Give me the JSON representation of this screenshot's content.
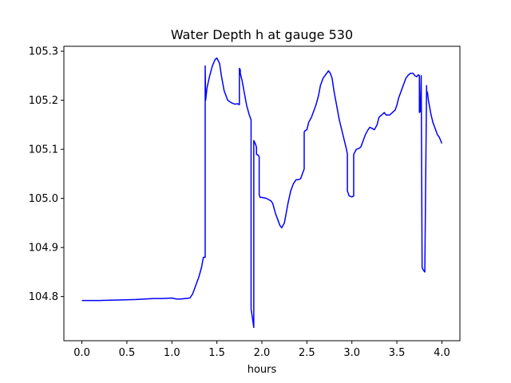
{
  "chart_data": {
    "type": "line",
    "title": "Water Depth h at gauge 530",
    "xlabel": "hours",
    "ylabel": "",
    "xlim": [
      -0.2,
      4.2
    ],
    "ylim": [
      104.71,
      105.31
    ],
    "xticks": [
      0.0,
      0.5,
      1.0,
      1.5,
      2.0,
      2.5,
      3.0,
      3.5,
      4.0
    ],
    "xtick_labels": [
      "0.0",
      "0.5",
      "1.0",
      "1.5",
      "2.0",
      "2.5",
      "3.0",
      "3.5",
      "4.0"
    ],
    "yticks": [
      104.8,
      104.9,
      105.0,
      105.1,
      105.2,
      105.3
    ],
    "ytick_labels": [
      "104.8",
      "104.9",
      "105.0",
      "105.1",
      "105.2",
      "105.3"
    ],
    "grid": false,
    "series": [
      {
        "color": "#0000ff",
        "x": [
          0.0,
          0.2,
          0.4,
          0.6,
          0.7,
          0.8,
          0.9,
          1.0,
          1.05,
          1.1,
          1.15,
          1.2,
          1.23,
          1.26,
          1.3,
          1.33,
          1.35,
          1.37,
          1.37,
          1.375,
          1.39,
          1.42,
          1.45,
          1.48,
          1.5,
          1.53,
          1.55,
          1.58,
          1.62,
          1.66,
          1.7,
          1.73,
          1.75,
          1.75,
          1.76,
          1.76,
          1.78,
          1.8,
          1.83,
          1.86,
          1.88,
          1.88,
          1.9,
          1.91,
          1.91,
          1.93,
          1.94,
          1.94,
          1.96,
          1.97,
          1.97,
          1.98,
          2.0,
          2.05,
          2.1,
          2.12,
          2.15,
          2.18,
          2.2,
          2.22,
          2.25,
          2.27,
          2.29,
          2.32,
          2.35,
          2.38,
          2.4,
          2.43,
          2.45,
          2.47,
          2.47,
          2.48,
          2.5,
          2.52,
          2.55,
          2.58,
          2.6,
          2.63,
          2.65,
          2.68,
          2.7,
          2.72,
          2.74,
          2.76,
          2.78,
          2.8,
          2.83,
          2.86,
          2.9,
          2.94,
          2.95,
          2.95,
          2.97,
          3.0,
          3.02,
          3.02,
          3.05,
          3.08,
          3.1,
          3.13,
          3.15,
          3.18,
          3.2,
          3.22,
          3.25,
          3.28,
          3.3,
          3.33,
          3.36,
          3.38,
          3.42,
          3.45,
          3.48,
          3.5,
          3.52,
          3.55,
          3.58,
          3.6,
          3.62,
          3.65,
          3.68,
          3.7,
          3.72,
          3.74,
          3.75,
          3.75,
          3.76,
          3.77,
          3.77,
          3.78,
          3.78,
          3.79,
          3.81,
          3.83,
          3.83,
          3.84,
          3.85,
          3.87,
          3.88,
          3.9,
          3.93,
          3.95,
          3.97,
          4.0
        ],
        "y": [
          104.792,
          104.792,
          104.793,
          104.794,
          104.795,
          104.796,
          104.796,
          104.797,
          104.795,
          104.795,
          104.796,
          104.797,
          104.805,
          104.82,
          104.84,
          104.86,
          104.88,
          104.88,
          105.27,
          105.2,
          105.225,
          105.25,
          105.27,
          105.283,
          105.286,
          105.275,
          105.25,
          105.22,
          105.2,
          105.195,
          105.192,
          105.193,
          105.191,
          105.265,
          105.262,
          105.255,
          105.24,
          105.22,
          105.19,
          105.17,
          105.16,
          104.775,
          104.75,
          104.737,
          105.118,
          105.11,
          105.104,
          105.09,
          105.088,
          105.085,
          105.008,
          105.002,
          105.002,
          105.0,
          104.995,
          104.99,
          104.97,
          104.955,
          104.945,
          104.94,
          104.95,
          104.97,
          104.99,
          105.015,
          105.03,
          105.038,
          105.038,
          105.04,
          105.05,
          105.06,
          105.135,
          105.138,
          105.14,
          105.155,
          105.165,
          105.18,
          105.19,
          105.21,
          105.23,
          105.245,
          105.25,
          105.255,
          105.26,
          105.255,
          105.245,
          105.22,
          105.19,
          105.16,
          105.13,
          105.1,
          105.09,
          105.015,
          105.005,
          105.003,
          105.005,
          105.09,
          105.1,
          105.102,
          105.105,
          105.12,
          105.13,
          105.14,
          105.145,
          105.143,
          105.14,
          105.15,
          105.165,
          105.17,
          105.175,
          105.17,
          105.17,
          105.175,
          105.18,
          105.19,
          105.205,
          105.22,
          105.235,
          105.245,
          105.25,
          105.255,
          105.255,
          105.25,
          105.248,
          105.252,
          105.25,
          105.175,
          105.177,
          105.25,
          105.25,
          104.865,
          104.86,
          104.855,
          104.85,
          105.23,
          105.22,
          105.215,
          105.2,
          105.18,
          105.17,
          105.155,
          105.14,
          105.13,
          105.125,
          105.112
        ]
      }
    ]
  }
}
